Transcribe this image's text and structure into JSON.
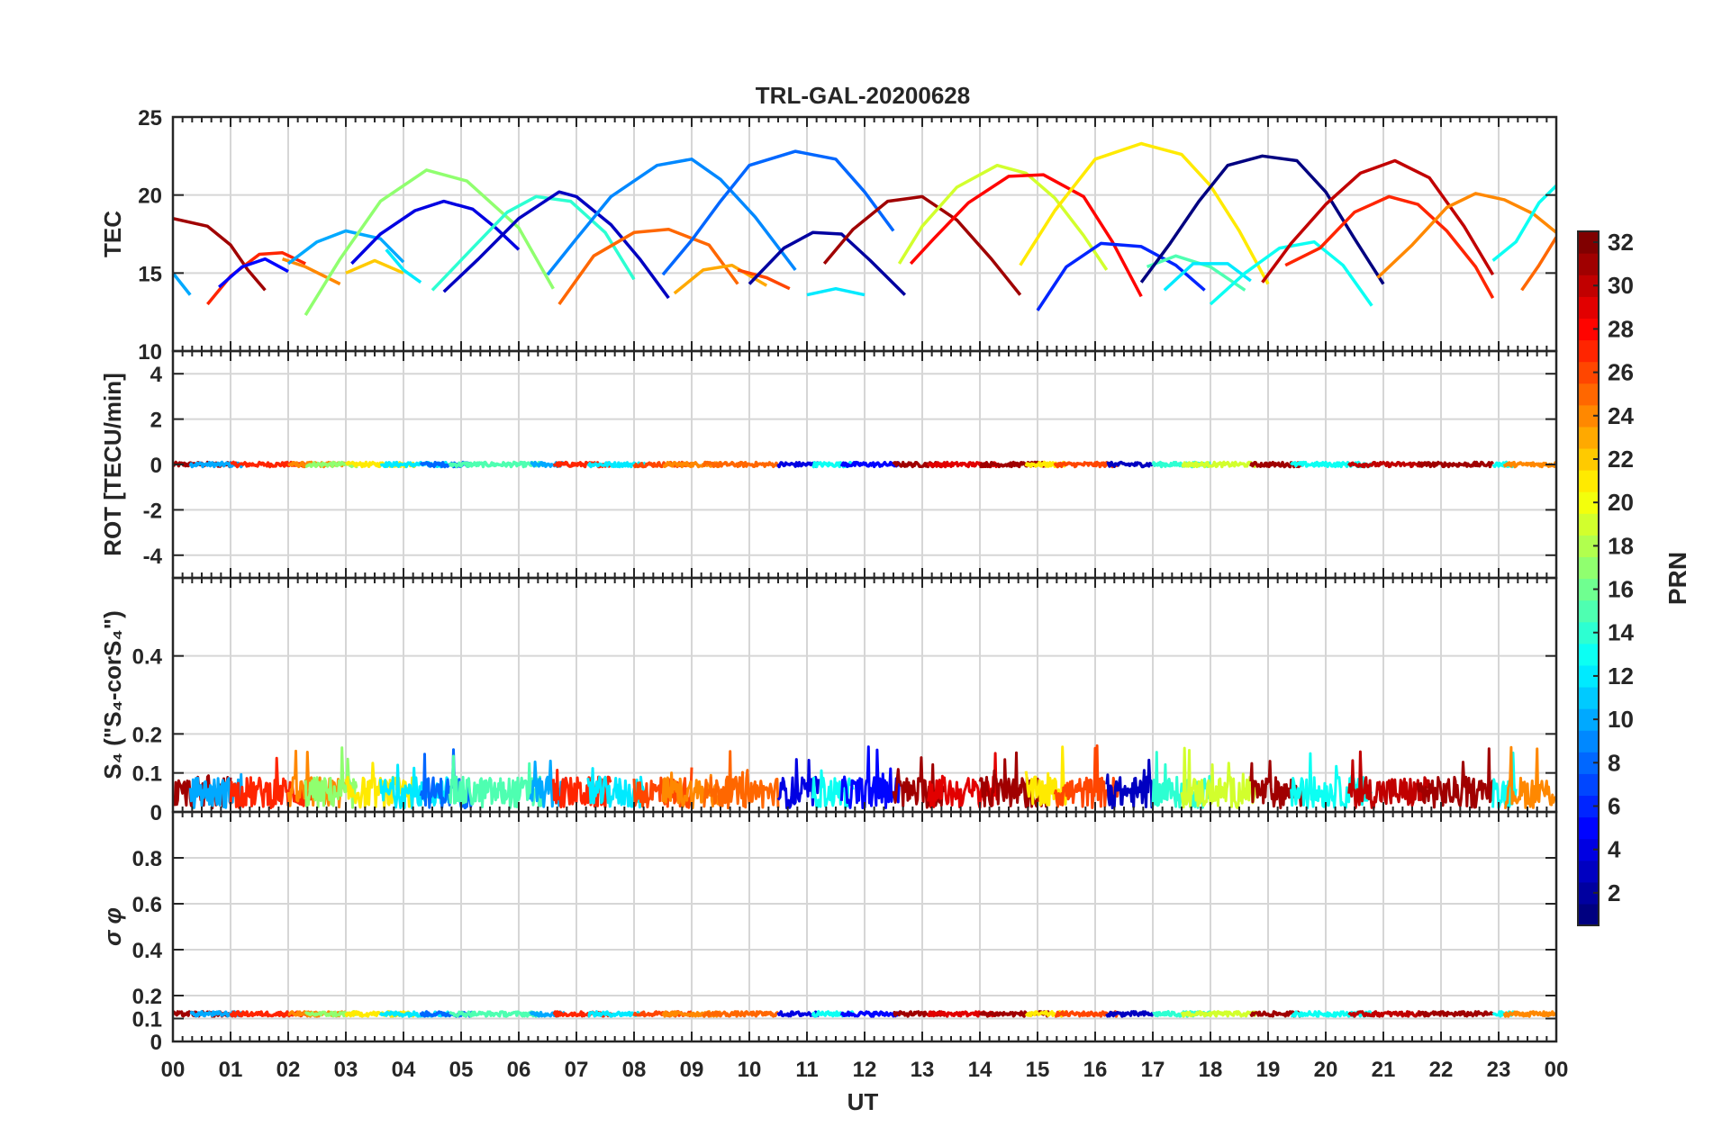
{
  "chart_data": {
    "type": "line",
    "title": "TRL-GAL-20200628",
    "xlabel": "UT",
    "xlim": [
      0,
      24
    ],
    "x_tick_labels": [
      "00",
      "01",
      "02",
      "03",
      "04",
      "05",
      "06",
      "07",
      "08",
      "09",
      "10",
      "11",
      "12",
      "13",
      "14",
      "15",
      "16",
      "17",
      "18",
      "19",
      "20",
      "21",
      "22",
      "23",
      "00"
    ],
    "colorbar": {
      "label": "PRN",
      "range": [
        1,
        32
      ],
      "tick_values": [
        2,
        4,
        6,
        8,
        10,
        12,
        14,
        16,
        18,
        20,
        22,
        24,
        26,
        28,
        30,
        32
      ],
      "colormap": "jet"
    },
    "panels": [
      {
        "id": "tec",
        "ylabel": "TEC",
        "ylim": [
          10,
          25
        ],
        "y_ticks": [
          10,
          15,
          20,
          25
        ],
        "grid": true,
        "series": [
          {
            "color_value": 31,
            "x": [
              0.0,
              0.6,
              1.0,
              1.3,
              1.6
            ],
            "y": [
              18.5,
              18.0,
              16.8,
              15.2,
              13.9
            ]
          },
          {
            "color_value": 10,
            "x": [
              0.0,
              0.15,
              0.3
            ],
            "y": [
              15.0,
              14.3,
              13.6
            ]
          },
          {
            "color_value": 27,
            "x": [
              0.6,
              1.0,
              1.5,
              1.9,
              2.3
            ],
            "y": [
              13.0,
              14.8,
              16.2,
              16.3,
              15.6
            ]
          },
          {
            "color_value": 5,
            "x": [
              0.8,
              1.2,
              1.6,
              2.0
            ],
            "y": [
              14.1,
              15.4,
              15.9,
              15.1
            ]
          },
          {
            "color_value": 24,
            "x": [
              1.9,
              2.3,
              2.9
            ],
            "y": [
              15.9,
              15.4,
              14.3
            ]
          },
          {
            "color_value": 10,
            "x": [
              2.0,
              2.5,
              3.0,
              3.6,
              4.0
            ],
            "y": [
              15.6,
              17.0,
              17.7,
              17.2,
              15.7
            ]
          },
          {
            "color_value": 17,
            "x": [
              2.3,
              2.9,
              3.6,
              4.4,
              5.1,
              6.0,
              6.6
            ],
            "y": [
              12.3,
              15.9,
              19.6,
              21.6,
              20.9,
              17.9,
              14.0
            ]
          },
          {
            "color_value": 22,
            "x": [
              3.0,
              3.5,
              4.0
            ],
            "y": [
              15.0,
              15.8,
              15.0
            ]
          },
          {
            "color_value": 4,
            "x": [
              3.1,
              3.6,
              4.2,
              4.7,
              5.2,
              5.6,
              6.0
            ],
            "y": [
              15.6,
              17.5,
              19.0,
              19.6,
              19.1,
              17.9,
              16.5
            ]
          },
          {
            "color_value": 12,
            "x": [
              3.7,
              4.0,
              4.3
            ],
            "y": [
              16.5,
              15.2,
              14.4
            ]
          },
          {
            "color_value": 14,
            "x": [
              4.5,
              5.2,
              5.8,
              6.3,
              6.9,
              7.5,
              8.0
            ],
            "y": [
              13.9,
              16.6,
              18.9,
              19.9,
              19.6,
              17.6,
              14.6
            ]
          },
          {
            "color_value": 3,
            "x": [
              4.7,
              5.3,
              6.0,
              6.7,
              7.0,
              7.6,
              8.1,
              8.6
            ],
            "y": [
              13.8,
              15.9,
              18.5,
              20.2,
              19.9,
              18.1,
              15.9,
              13.4
            ]
          },
          {
            "color_value": 9,
            "x": [
              6.5,
              7.0,
              7.6,
              8.4,
              9.0,
              9.5,
              10.1,
              10.8
            ],
            "y": [
              14.9,
              17.2,
              19.9,
              21.9,
              22.3,
              21.0,
              18.6,
              15.2
            ]
          },
          {
            "color_value": 25,
            "x": [
              6.7,
              7.3,
              8.0,
              8.6,
              9.3,
              9.8
            ],
            "y": [
              13.0,
              16.1,
              17.6,
              17.8,
              16.8,
              14.3
            ]
          },
          {
            "color_value": 23,
            "x": [
              8.7,
              9.2,
              9.7,
              10.3
            ],
            "y": [
              13.7,
              15.2,
              15.5,
              14.2
            ]
          },
          {
            "color_value": 26,
            "x": [
              9.8,
              10.3,
              10.7
            ],
            "y": [
              15.2,
              14.7,
              14.0
            ]
          },
          {
            "color_value": 8,
            "x": [
              8.5,
              9.0,
              9.5,
              10.0,
              10.8,
              11.5,
              12.0,
              12.5
            ],
            "y": [
              14.9,
              17.1,
              19.6,
              21.9,
              22.8,
              22.3,
              20.2,
              17.7
            ]
          },
          {
            "color_value": 2,
            "x": [
              10.0,
              10.6,
              11.1,
              11.6,
              12.1,
              12.7
            ],
            "y": [
              14.3,
              16.6,
              17.6,
              17.5,
              15.8,
              13.6
            ]
          },
          {
            "color_value": 12,
            "x": [
              11.0,
              11.5,
              12.0
            ],
            "y": [
              13.6,
              14.0,
              13.6
            ]
          },
          {
            "color_value": 31,
            "x": [
              11.3,
              11.8,
              12.4,
              13.0,
              13.6,
              14.2,
              14.7
            ],
            "y": [
              15.6,
              17.8,
              19.6,
              19.9,
              18.4,
              15.9,
              13.6
            ]
          },
          {
            "color_value": 19,
            "x": [
              12.6,
              13.0,
              13.6,
              14.3,
              14.8,
              15.3,
              15.8,
              16.2
            ],
            "y": [
              15.6,
              18.0,
              20.5,
              21.9,
              21.4,
              19.8,
              17.4,
              15.2
            ]
          },
          {
            "color_value": 28,
            "x": [
              12.8,
              13.2,
              13.8,
              14.5,
              15.1,
              15.8,
              16.3,
              16.8
            ],
            "y": [
              15.6,
              17.2,
              19.5,
              21.2,
              21.3,
              19.9,
              17.0,
              13.5
            ]
          },
          {
            "color_value": 21,
            "x": [
              14.7,
              15.3,
              16.0,
              16.8,
              17.5,
              18.0,
              18.5,
              19.0
            ],
            "y": [
              15.5,
              19.0,
              22.3,
              23.3,
              22.6,
              20.6,
              17.7,
              14.3
            ]
          },
          {
            "color_value": 6,
            "x": [
              15.0,
              15.5,
              16.1,
              16.8,
              17.4,
              17.9
            ],
            "y": [
              12.6,
              15.4,
              16.9,
              16.7,
              15.5,
              13.9
            ]
          },
          {
            "color_value": 15,
            "x": [
              16.9,
              17.4,
              18.0,
              18.6
            ],
            "y": [
              15.4,
              16.1,
              15.4,
              13.9
            ]
          },
          {
            "color_value": 12,
            "x": [
              17.2,
              17.7,
              18.3,
              18.7
            ],
            "y": [
              13.9,
              15.6,
              15.6,
              14.5
            ]
          },
          {
            "color_value": 1,
            "x": [
              16.8,
              17.3,
              17.8,
              18.3,
              18.9,
              19.5,
              20.0,
              20.5,
              21.0
            ],
            "y": [
              14.4,
              16.9,
              19.6,
              21.9,
              22.5,
              22.2,
              20.2,
              17.2,
              14.3
            ]
          },
          {
            "color_value": 13,
            "x": [
              18.0,
              18.6,
              19.2,
              19.8,
              20.3,
              20.8
            ],
            "y": [
              13.0,
              15.0,
              16.6,
              17.0,
              15.5,
              12.9
            ]
          },
          {
            "color_value": 30,
            "x": [
              18.9,
              19.4,
              20.0,
              20.6,
              21.2,
              21.8,
              22.4,
              22.9
            ],
            "y": [
              14.4,
              16.9,
              19.4,
              21.4,
              22.2,
              21.1,
              18.0,
              14.9
            ]
          },
          {
            "color_value": 27,
            "x": [
              19.3,
              19.9,
              20.5,
              21.1,
              21.6,
              22.1,
              22.6,
              22.9
            ],
            "y": [
              15.5,
              16.6,
              18.9,
              19.9,
              19.4,
              17.7,
              15.4,
              13.4
            ]
          },
          {
            "color_value": 24,
            "x": [
              20.9,
              21.5,
              22.1,
              22.6,
              23.1,
              23.6,
              24.0
            ],
            "y": [
              14.7,
              16.8,
              19.2,
              20.1,
              19.7,
              18.8,
              17.6
            ]
          },
          {
            "color_value": 25,
            "x": [
              23.4,
              23.7,
              24.0
            ],
            "y": [
              13.9,
              15.5,
              17.3
            ]
          },
          {
            "color_value": 13,
            "x": [
              22.9,
              23.3,
              23.7,
              24.0
            ],
            "y": [
              15.8,
              17.0,
              19.5,
              20.6
            ]
          }
        ]
      },
      {
        "id": "rot",
        "ylabel": "ROT [TECU/min]",
        "ylim": [
          -5,
          5
        ],
        "y_ticks": [
          -4,
          -2,
          0,
          2,
          4
        ],
        "grid": true,
        "level": 0.0,
        "noise": 0.1
      },
      {
        "id": "s4",
        "ylabel": "S₄ (\"S₄-corS₄\")",
        "ylim": [
          0,
          0.6
        ],
        "y_ticks": [
          0,
          0.1,
          0.2,
          0.4
        ],
        "grid": true,
        "level": 0.05,
        "noise": 0.04,
        "spikes_max": 0.17
      },
      {
        "id": "sigma_phi",
        "ylabel": "σ φ",
        "ylim": [
          0,
          1
        ],
        "y_ticks": [
          0,
          0.1,
          0.2,
          0.4,
          0.6,
          0.8
        ],
        "grid": true,
        "level": 0.12,
        "noise": 0.01
      }
    ]
  }
}
